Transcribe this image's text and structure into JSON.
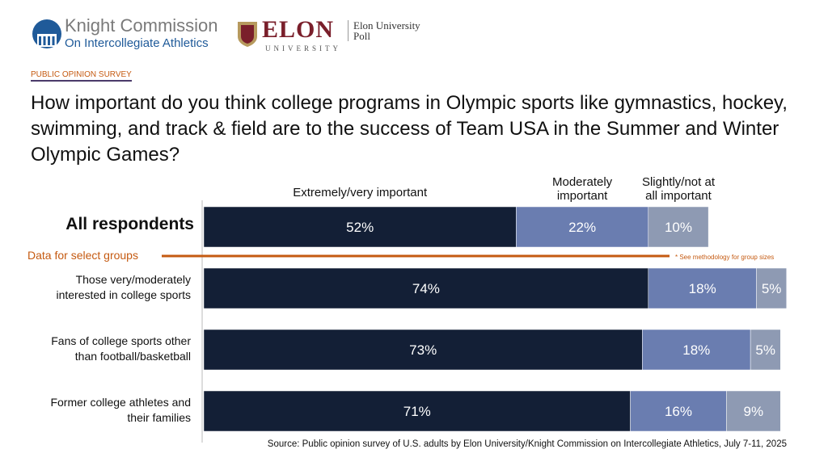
{
  "header": {
    "knight_title": "Knight Commission",
    "knight_subtitle": "On Intercollegiate Athletics",
    "elon_word": "ELON",
    "elon_university": "UNIVERSITY",
    "elon_poll": "Elon University Poll",
    "survey_label": "PUBLIC OPINION SURVEY"
  },
  "question": "How important do you think college programs in Olympic sports like gymnastics, hockey, swimming, and track & field are to the success of Team USA in the Summer and Winter Olympic Games?",
  "chart_data": {
    "type": "bar",
    "orientation": "horizontal-stacked",
    "series": [
      {
        "name": "Extremely/very important",
        "color": "#131f36",
        "values": [
          52,
          74,
          73,
          71
        ]
      },
      {
        "name": "Moderately important",
        "color": "#6a7db0",
        "values": [
          22,
          18,
          18,
          16
        ]
      },
      {
        "name": "Slightly/not at all important",
        "color": "#8e9ab3",
        "values": [
          10,
          5,
          5,
          9
        ]
      }
    ],
    "categories": [
      "All respondents",
      "Those very/moderately interested in college sports",
      "Fans of college sports other than football/basketball",
      "Former college athletes and their families"
    ],
    "xlim": [
      0,
      100
    ],
    "legend_placement": "top",
    "group_divider_label": "Data for select groups",
    "note": "* See methodology for group sizes",
    "source": "Source: Public opinion survey of U.S. adults by Elon University/Knight Commission on Intercollegiate Athletics, July 7-11, 2025"
  }
}
